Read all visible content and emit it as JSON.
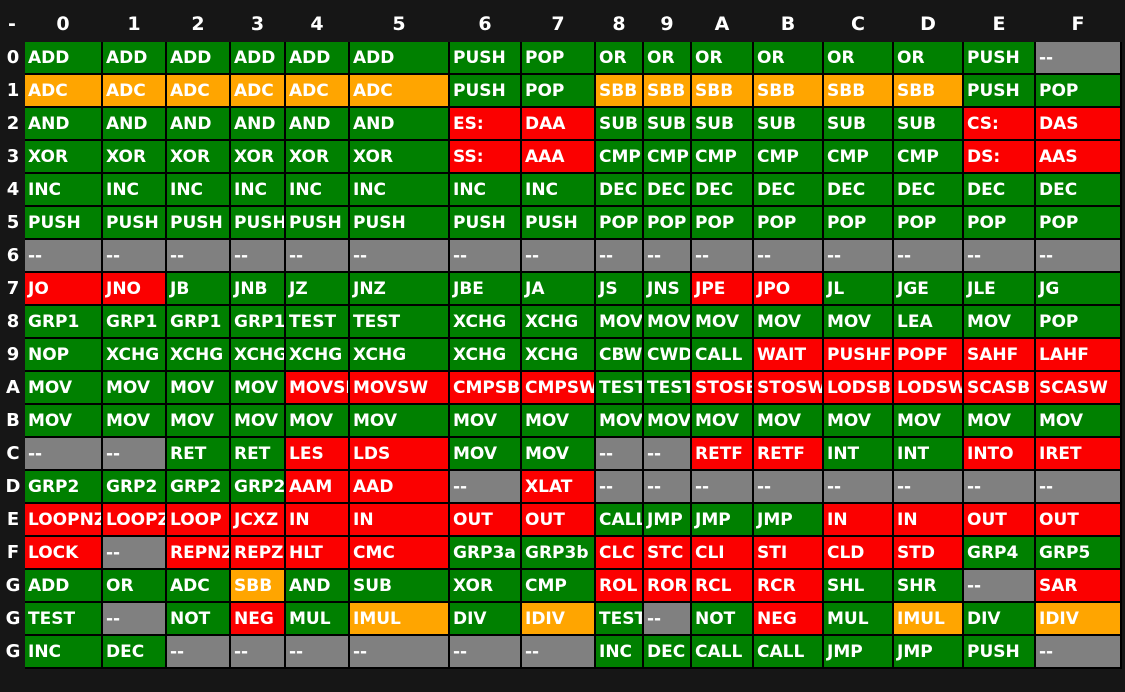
{
  "colors": {
    "green": "#008000",
    "orange": "#FFA500",
    "red": "#FB0000",
    "gray": "#808080",
    "background": "#161616",
    "grid": "#000000",
    "text": "#FFFFFF"
  },
  "table": {
    "corner": "-",
    "columns": [
      "0",
      "1",
      "2",
      "3",
      "4",
      "5",
      "6",
      "7",
      "8",
      "9",
      "A",
      "B",
      "C",
      "D",
      "E",
      "F"
    ],
    "color_codes": {
      "g": "green",
      "o": "orange",
      "r": "red",
      "x": "gray"
    },
    "rows": [
      {
        "label": "0",
        "ops": [
          "ADD",
          "ADD",
          "ADD",
          "ADD",
          "ADD",
          "ADD",
          "PUSH",
          "POP",
          "OR",
          "OR",
          "OR",
          "OR",
          "OR",
          "OR",
          "PUSH",
          "--"
        ],
        "colors": "gggggggggggggggx"
      },
      {
        "label": "1",
        "ops": [
          "ADC",
          "ADC",
          "ADC",
          "ADC",
          "ADC",
          "ADC",
          "PUSH",
          "POP",
          "SBB",
          "SBB",
          "SBB",
          "SBB",
          "SBB",
          "SBB",
          "PUSH",
          "POP"
        ],
        "colors": "ooooooggoooooogg"
      },
      {
        "label": "2",
        "ops": [
          "AND",
          "AND",
          "AND",
          "AND",
          "AND",
          "AND",
          "ES:",
          "DAA",
          "SUB",
          "SUB",
          "SUB",
          "SUB",
          "SUB",
          "SUB",
          "CS:",
          "DAS"
        ],
        "colors": "ggggggrrggggggrr"
      },
      {
        "label": "3",
        "ops": [
          "XOR",
          "XOR",
          "XOR",
          "XOR",
          "XOR",
          "XOR",
          "SS:",
          "AAA",
          "CMP",
          "CMP",
          "CMP",
          "CMP",
          "CMP",
          "CMP",
          "DS:",
          "AAS"
        ],
        "colors": "ggggggrrggggggrr"
      },
      {
        "label": "4",
        "ops": [
          "INC",
          "INC",
          "INC",
          "INC",
          "INC",
          "INC",
          "INC",
          "INC",
          "DEC",
          "DEC",
          "DEC",
          "DEC",
          "DEC",
          "DEC",
          "DEC",
          "DEC"
        ],
        "colors": "gggggggggggggggg"
      },
      {
        "label": "5",
        "ops": [
          "PUSH",
          "PUSH",
          "PUSH",
          "PUSH",
          "PUSH",
          "PUSH",
          "PUSH",
          "PUSH",
          "POP",
          "POP",
          "POP",
          "POP",
          "POP",
          "POP",
          "POP",
          "POP"
        ],
        "colors": "gggggggggggggggg"
      },
      {
        "label": "6",
        "ops": [
          "--",
          "--",
          "--",
          "--",
          "--",
          "--",
          "--",
          "--",
          "--",
          "--",
          "--",
          "--",
          "--",
          "--",
          "--",
          "--"
        ],
        "colors": "xxxxxxxxxxxxxxxx"
      },
      {
        "label": "7",
        "ops": [
          "JO",
          "JNO",
          "JB",
          "JNB",
          "JZ",
          "JNZ",
          "JBE",
          "JA",
          "JS",
          "JNS",
          "JPE",
          "JPO",
          "JL",
          "JGE",
          "JLE",
          "JG"
        ],
        "colors": "rrggggggggrrgggg"
      },
      {
        "label": "8",
        "ops": [
          "GRP1",
          "GRP1",
          "GRP1",
          "GRP1",
          "TEST",
          "TEST",
          "XCHG",
          "XCHG",
          "MOV",
          "MOV",
          "MOV",
          "MOV",
          "MOV",
          "LEA",
          "MOV",
          "POP"
        ],
        "colors": "gggggggggggggggg"
      },
      {
        "label": "9",
        "ops": [
          "NOP",
          "XCHG",
          "XCHG",
          "XCHG",
          "XCHG",
          "XCHG",
          "XCHG",
          "XCHG",
          "CBW",
          "CWD",
          "CALL",
          "WAIT",
          "PUSHF",
          "POPF",
          "SAHF",
          "LAHF"
        ],
        "colors": "gggggggggggrrrrr"
      },
      {
        "label": "A",
        "ops": [
          "MOV",
          "MOV",
          "MOV",
          "MOV",
          "MOVSB",
          "MOVSW",
          "CMPSB",
          "CMPSW",
          "TEST",
          "TEST",
          "STOSB",
          "STOSW",
          "LODSB",
          "LODSW",
          "SCASB",
          "SCASW"
        ],
        "colors": "ggggrrrrggrrrrrr"
      },
      {
        "label": "B",
        "ops": [
          "MOV",
          "MOV",
          "MOV",
          "MOV",
          "MOV",
          "MOV",
          "MOV",
          "MOV",
          "MOV",
          "MOV",
          "MOV",
          "MOV",
          "MOV",
          "MOV",
          "MOV",
          "MOV"
        ],
        "colors": "gggggggggggggggg"
      },
      {
        "label": "C",
        "ops": [
          "--",
          "--",
          "RET",
          "RET",
          "LES",
          "LDS",
          "MOV",
          "MOV",
          "--",
          "--",
          "RETF",
          "RETF",
          "INT",
          "INT",
          "INTO",
          "IRET"
        ],
        "colors": "xxggrrggxxrrggrr"
      },
      {
        "label": "D",
        "ops": [
          "GRP2",
          "GRP2",
          "GRP2",
          "GRP2",
          "AAM",
          "AAD",
          "--",
          "XLAT",
          "--",
          "--",
          "--",
          "--",
          "--",
          "--",
          "--",
          "--"
        ],
        "colors": "ggggrrxrxxxxxxxx"
      },
      {
        "label": "E",
        "ops": [
          "LOOPNZ",
          "LOOPZ",
          "LOOP",
          "JCXZ",
          "IN",
          "IN",
          "OUT",
          "OUT",
          "CALL",
          "JMP",
          "JMP",
          "JMP",
          "IN",
          "IN",
          "OUT",
          "OUT"
        ],
        "colors": "rrrrrrrrggggrrrr"
      },
      {
        "label": "F",
        "ops": [
          "LOCK",
          "--",
          "REPNZ",
          "REPZ",
          "HLT",
          "CMC",
          "GRP3a",
          "GRP3b",
          "CLC",
          "STC",
          "CLI",
          "STI",
          "CLD",
          "STD",
          "GRP4",
          "GRP5"
        ],
        "colors": "rxrrrrggrrrrrrgg"
      },
      {
        "label": "G",
        "ops": [
          "ADD",
          "OR",
          "ADC",
          "SBB",
          "AND",
          "SUB",
          "XOR",
          "CMP",
          "ROL",
          "ROR",
          "RCL",
          "RCR",
          "SHL",
          "SHR",
          "--",
          "SAR"
        ],
        "colors": "gggoggggrrrrggxr"
      },
      {
        "label": "G",
        "ops": [
          "TEST",
          "--",
          "NOT",
          "NEG",
          "MUL",
          "IMUL",
          "DIV",
          "IDIV",
          "TEST",
          "--",
          "NOT",
          "NEG",
          "MUL",
          "IMUL",
          "DIV",
          "IDIV"
        ],
        "colors": "gxgrgogogxgrgogo"
      },
      {
        "label": "G",
        "ops": [
          "INC",
          "DEC",
          "--",
          "--",
          "--",
          "--",
          "--",
          "--",
          "INC",
          "DEC",
          "CALL",
          "CALL",
          "JMP",
          "JMP",
          "PUSH",
          "--"
        ],
        "colors": "ggxxxxxxgggggggx"
      }
    ]
  }
}
